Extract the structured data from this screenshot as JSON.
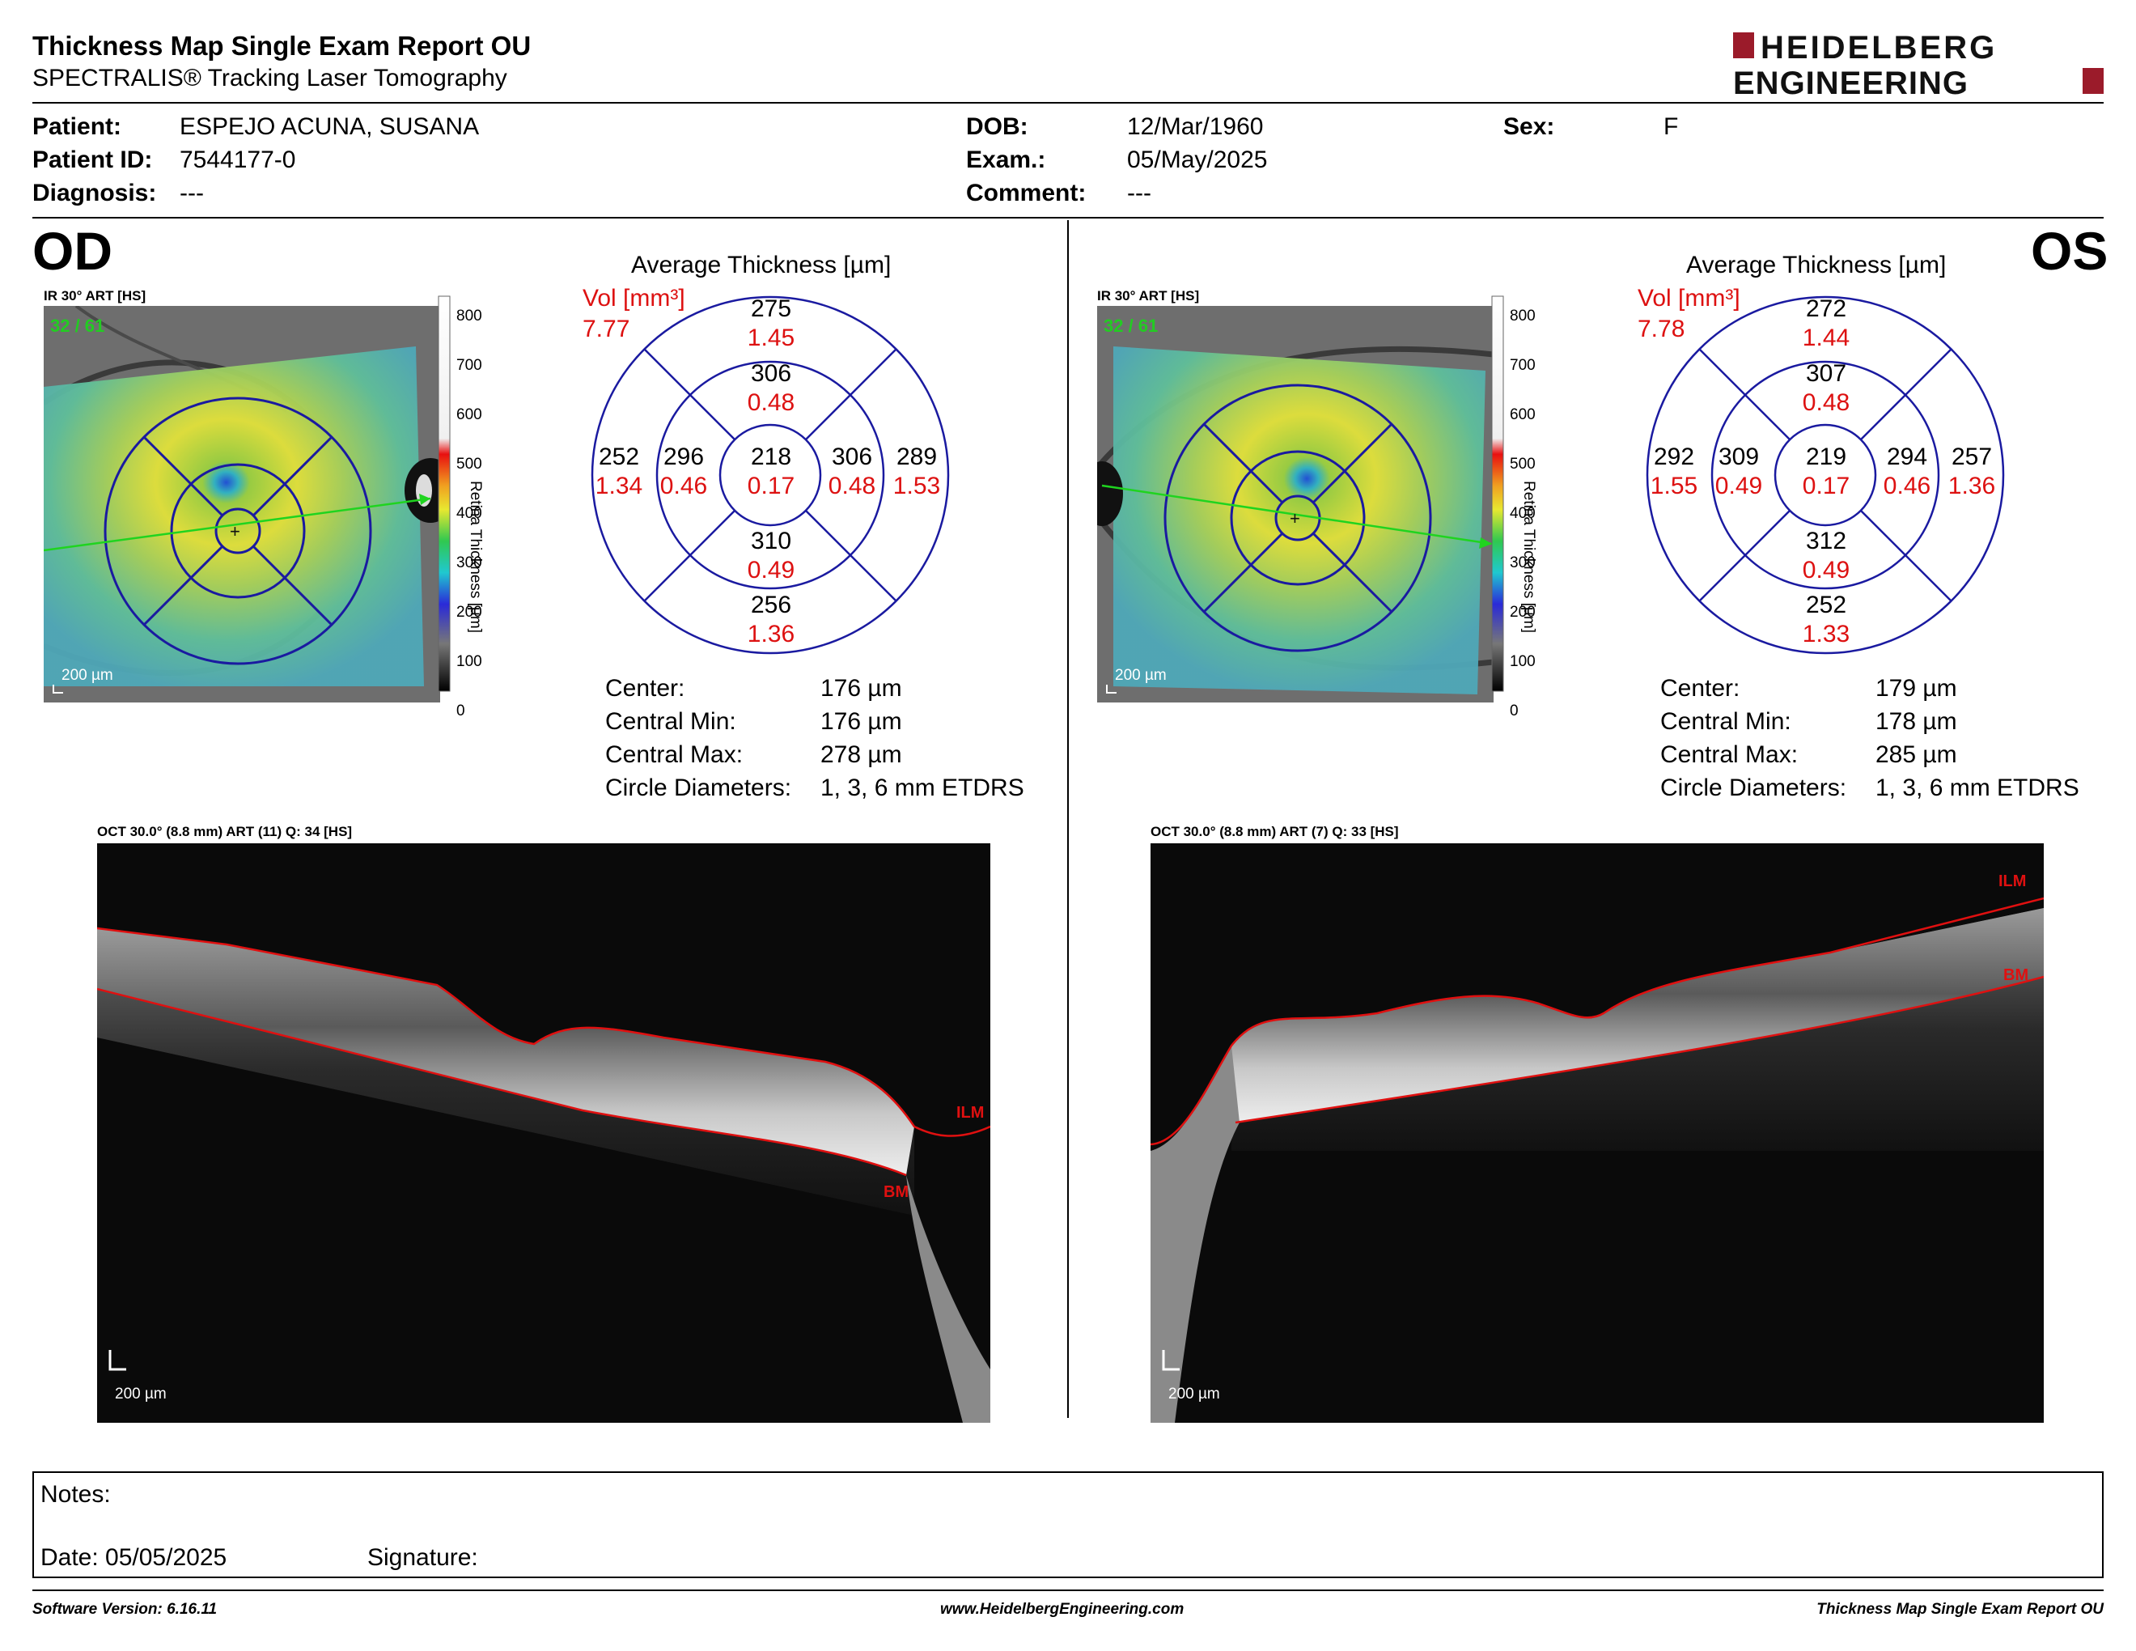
{
  "report": {
    "title": "Thickness Map Single Exam Report OU",
    "subtitle": "SPECTRALIS® Tracking Laser Tomography",
    "logo_line1": "HEIDELBERG",
    "logo_line2": "ENGINEERING"
  },
  "patient": {
    "patient_label": "Patient:",
    "patient_value": "ESPEJO ACUNA, SUSANA",
    "id_label": "Patient ID:",
    "id_value": "7544177-0",
    "diagnosis_label": "Diagnosis:",
    "diagnosis_value": "---",
    "dob_label": "DOB:",
    "dob_value": "12/Mar/1960",
    "exam_label": "Exam.:",
    "exam_value": "05/May/2025",
    "comment_label": "Comment:",
    "comment_value": "---",
    "sex_label": "Sex:",
    "sex_value": "F"
  },
  "colorbar": {
    "ticks": [
      "800",
      "700",
      "600",
      "500",
      "400",
      "300",
      "200",
      "100",
      "0"
    ],
    "label": "Retina Thickness [µm]"
  },
  "od": {
    "eye_label": "OD",
    "ir_label": "IR 30° ART [HS]",
    "ir_count": "32 / 61",
    "scale": "200 µm",
    "etdrs_title": "Average Thickness [µm]",
    "vol_label": "Vol [mm³]",
    "vol_value": "7.77",
    "sectors": {
      "outer_sup": {
        "t": "275",
        "v": "1.45"
      },
      "inner_sup": {
        "t": "306",
        "v": "0.48"
      },
      "outer_left": {
        "t": "252",
        "v": "1.34"
      },
      "inner_left": {
        "t": "296",
        "v": "0.46"
      },
      "center": {
        "t": "218",
        "v": "0.17"
      },
      "inner_right": {
        "t": "306",
        "v": "0.48"
      },
      "outer_right": {
        "t": "289",
        "v": "1.53"
      },
      "inner_inf": {
        "t": "310",
        "v": "0.49"
      },
      "outer_inf": {
        "t": "256",
        "v": "1.36"
      }
    },
    "stats": {
      "center_label": "Center:",
      "center_value": "176 µm",
      "cmin_label": "Central Min:",
      "cmin_value": "176 µm",
      "cmax_label": "Central Max:",
      "cmax_value": "278 µm",
      "diam_label": "Circle Diameters:",
      "diam_value": "1, 3, 6 mm ETDRS"
    },
    "oct_label": "OCT 30.0° (8.8 mm) ART (11) Q: 34 [HS]",
    "oct_scale": "200 µm",
    "ilm": "ILM",
    "bm": "BM"
  },
  "os": {
    "eye_label": "OS",
    "ir_label": "IR 30° ART [HS]",
    "ir_count": "32 / 61",
    "scale": "200 µm",
    "etdrs_title": "Average Thickness [µm]",
    "vol_label": "Vol [mm³]",
    "vol_value": "7.78",
    "sectors": {
      "outer_sup": {
        "t": "272",
        "v": "1.44"
      },
      "inner_sup": {
        "t": "307",
        "v": "0.48"
      },
      "outer_left": {
        "t": "292",
        "v": "1.55"
      },
      "inner_left": {
        "t": "309",
        "v": "0.49"
      },
      "center": {
        "t": "219",
        "v": "0.17"
      },
      "inner_right": {
        "t": "294",
        "v": "0.46"
      },
      "outer_right": {
        "t": "257",
        "v": "1.36"
      },
      "inner_inf": {
        "t": "312",
        "v": "0.49"
      },
      "outer_inf": {
        "t": "252",
        "v": "1.33"
      }
    },
    "stats": {
      "center_label": "Center:",
      "center_value": "179 µm",
      "cmin_label": "Central Min:",
      "cmin_value": "178 µm",
      "cmax_label": "Central Max:",
      "cmax_value": "285 µm",
      "diam_label": "Circle Diameters:",
      "diam_value": "1, 3, 6 mm ETDRS"
    },
    "oct_label": "OCT 30.0° (8.8 mm) ART (7) Q: 33 [HS]",
    "oct_scale": "200 µm",
    "ilm": "ILM",
    "bm": "BM"
  },
  "notes": {
    "notes_label": "Notes:",
    "date_label": "Date: 05/05/2025",
    "signature_label": "Signature:"
  },
  "footer": {
    "left": "Software Version: 6.16.11",
    "center": "www.HeidelbergEngineering.com",
    "right": "Thickness Map Single Exam Report OU"
  },
  "colors": {
    "etdrs_line": "#1a1aa0",
    "volume_red": "#dd1111",
    "count_green": "#22cc22",
    "logo_red": "#9b1b2a"
  }
}
